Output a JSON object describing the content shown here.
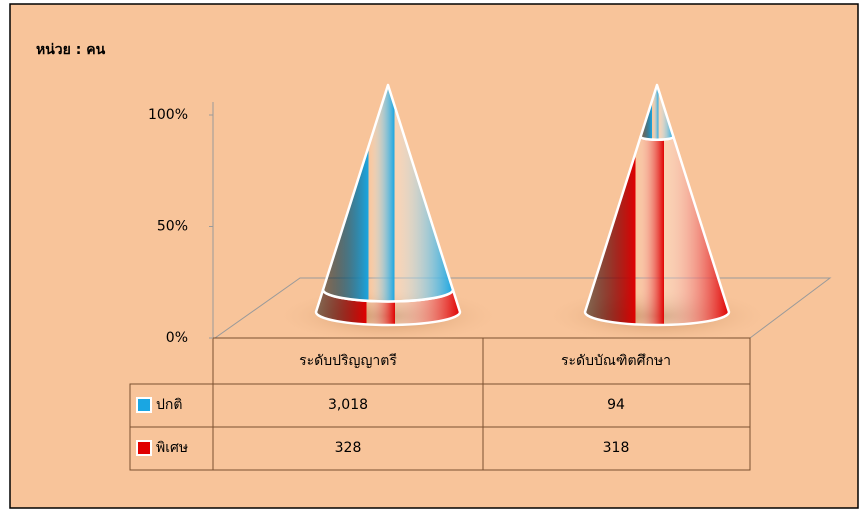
{
  "chart_data": {
    "type": "cone",
    "stacked": "percent",
    "unit_label": "หน่วย : คน",
    "categories": [
      "ระดับปริญญาตรี",
      "ระดับบัณฑิตศึกษา"
    ],
    "series": [
      {
        "name": "ปกติ",
        "color": "#1aa6e2",
        "values": [
          3018,
          94
        ],
        "value_labels": [
          "3,018",
          "94"
        ]
      },
      {
        "name": "พิเศษ",
        "color": "#e00000",
        "values": [
          328,
          318
        ]
      }
    ],
    "ylim": [
      0,
      100
    ],
    "yticks": [
      {
        "value": 0,
        "label": "0%"
      },
      {
        "value": 50,
        "label": "50%"
      },
      {
        "value": 100,
        "label": "100%"
      }
    ],
    "grid": false,
    "data_table": true
  }
}
